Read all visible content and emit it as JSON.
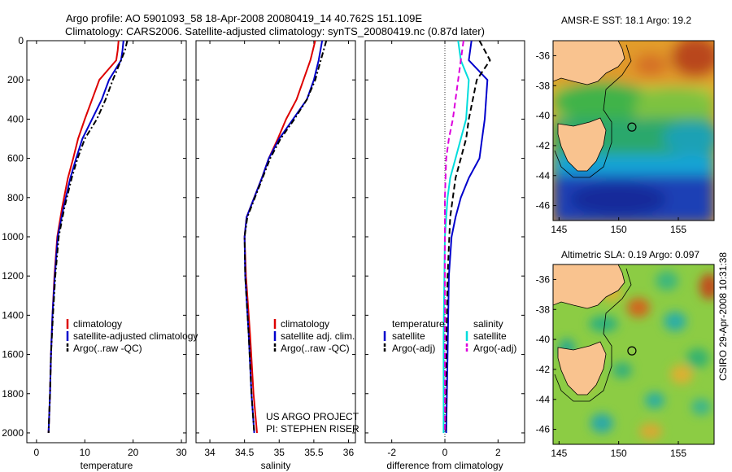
{
  "title": {
    "line1": "Argo profile: AO 5901093_58 18-Apr-2008 20080419_14 40.762S 151.109E",
    "line2": "Climatology: CARS2006. Satellite-adjusted climatology: synTS_20080419.nc (0.87d later)"
  },
  "stamp": "CSIRO 29-Apr-2008 10:31:38",
  "credit": {
    "line1": "US ARGO PROJECT",
    "line2": "PI: STEPHEN RISER"
  },
  "colors": {
    "climatology": "#dd0000",
    "satellite": "#0000cc",
    "argo": "#000000",
    "temp_diff_satellite": "#0000cc",
    "temp_diff_argo": "#000000",
    "sal_diff_satellite": "#00dddd",
    "sal_diff_argo": "#dd00dd",
    "land": "#f9c38f"
  },
  "chart_data": [
    {
      "type": "line",
      "xlabel": "temperature",
      "ylabel": "",
      "xlim": [
        -2,
        31
      ],
      "ylim": [
        2050,
        0
      ],
      "xticks": [
        0,
        10,
        20,
        30
      ],
      "yticks": [
        0,
        200,
        400,
        600,
        800,
        1000,
        1200,
        1400,
        1600,
        1800,
        2000
      ],
      "legend": {
        "position": "lower-right",
        "entries": [
          "climatology",
          "satellite-adjusted climatology",
          "Argo(..raw -QC)"
        ]
      },
      "series": [
        {
          "name": "climatology",
          "color_key": "climatology",
          "style": "solid",
          "x": [
            17.0,
            16.8,
            16.5,
            13.0,
            11.5,
            10.0,
            8.6,
            7.6,
            6.5,
            5.3,
            4.3,
            3.7,
            3.3,
            3.0,
            2.8,
            2.5
          ],
          "y": [
            0,
            50,
            100,
            200,
            300,
            400,
            500,
            600,
            700,
            850,
            1000,
            1200,
            1400,
            1600,
            1800,
            2000
          ]
        },
        {
          "name": "satellite-adjusted climatology",
          "color_key": "satellite",
          "style": "solid",
          "x": [
            18.0,
            17.8,
            17.5,
            15.0,
            13.5,
            11.5,
            9.5,
            8.2,
            7.0,
            5.6,
            4.4,
            3.8,
            3.3,
            3.0,
            2.8,
            2.5
          ],
          "y": [
            0,
            50,
            100,
            200,
            300,
            400,
            500,
            600,
            700,
            850,
            1000,
            1200,
            1400,
            1600,
            1800,
            2000
          ]
        },
        {
          "name": "Argo(..raw -QC)",
          "color_key": "argo",
          "style": "dashdot",
          "x": [
            18.8,
            18.3,
            17.5,
            15.8,
            14.3,
            12.5,
            10.0,
            8.5,
            7.3,
            5.8,
            4.6,
            3.9,
            3.4,
            3.0,
            2.8,
            2.5
          ],
          "y": [
            0,
            50,
            100,
            200,
            300,
            400,
            500,
            600,
            700,
            850,
            1000,
            1200,
            1400,
            1600,
            1800,
            2000
          ]
        }
      ]
    },
    {
      "type": "line",
      "xlabel": "salinity",
      "ylabel": "",
      "xlim": [
        33.8,
        36.1
      ],
      "ylim": [
        2050,
        0
      ],
      "xticks": [
        34,
        34.5,
        35,
        35.5,
        36
      ],
      "legend": {
        "position": "lower-right",
        "entries": [
          "climatology",
          "satellite adj. clim.",
          "Argo(..raw -QC)"
        ]
      },
      "series": [
        {
          "name": "climatology",
          "color_key": "climatology",
          "style": "solid",
          "x": [
            35.52,
            35.45,
            35.35,
            35.25,
            35.1,
            34.98,
            34.85,
            34.75,
            34.64,
            34.53,
            34.5,
            34.52,
            34.58,
            34.63,
            34.68
          ],
          "y": [
            0,
            100,
            200,
            300,
            400,
            500,
            600,
            700,
            800,
            900,
            1000,
            1200,
            1500,
            1800,
            2000
          ]
        },
        {
          "name": "satellite adj. clim.",
          "color_key": "satellite",
          "style": "solid",
          "x": [
            35.62,
            35.57,
            35.5,
            35.4,
            35.2,
            35.0,
            34.85,
            34.75,
            34.64,
            34.53,
            34.5,
            34.51,
            34.56,
            34.6,
            34.64
          ],
          "y": [
            0,
            100,
            200,
            300,
            400,
            500,
            600,
            700,
            800,
            900,
            1000,
            1200,
            1500,
            1800,
            2000
          ]
        },
        {
          "name": "Argo(..raw -QC)",
          "color_key": "argo",
          "style": "dashdot",
          "x": [
            35.68,
            35.6,
            35.52,
            35.4,
            35.22,
            35.02,
            34.87,
            34.76,
            34.65,
            34.54,
            34.5,
            34.51,
            34.56,
            34.6,
            34.64
          ],
          "y": [
            0,
            100,
            200,
            300,
            400,
            500,
            600,
            700,
            800,
            900,
            1000,
            1200,
            1500,
            1800,
            2000
          ]
        }
      ]
    },
    {
      "type": "line",
      "xlabel": "difference from climatology",
      "ylabel": "",
      "xlim": [
        -3,
        3
      ],
      "ylim": [
        2050,
        0
      ],
      "xticks": [
        -2,
        0,
        2
      ],
      "legend": {
        "position": "lower-center",
        "entries": [
          "temperature",
          "satellite",
          "Argo(-adj)",
          "salinity",
          "satellite",
          "Argo(-adj)"
        ]
      },
      "series": [
        {
          "name": "temperature satellite",
          "color_key": "temp_diff_satellite",
          "style": "solid",
          "x": [
            1.0,
            0.9,
            1.6,
            1.5,
            1.4,
            1.3,
            0.9,
            0.6,
            0.4,
            0.25,
            0.15,
            0.1,
            0.05
          ],
          "y": [
            0,
            100,
            200,
            400,
            500,
            600,
            700,
            800,
            900,
            1000,
            1200,
            1600,
            2000
          ]
        },
        {
          "name": "temperature Argo(-adj)",
          "color_key": "temp_diff_argo",
          "style": "dashed",
          "x": [
            1.3,
            1.7,
            1.2,
            0.9,
            0.8,
            0.6,
            0.4,
            0.3,
            0.2,
            0.1,
            0.05,
            0.02
          ],
          "y": [
            0,
            100,
            200,
            400,
            500,
            600,
            700,
            800,
            900,
            1200,
            1600,
            2000
          ]
        },
        {
          "name": "salinity satellite",
          "color_key": "sal_diff_satellite",
          "style": "solid",
          "x": [
            0.5,
            0.6,
            0.9,
            0.8,
            0.6,
            0.4,
            0.2,
            0.1,
            0.0,
            -0.05,
            -0.05
          ],
          "y": [
            0,
            100,
            200,
            400,
            500,
            600,
            700,
            800,
            1000,
            1500,
            2000
          ]
        },
        {
          "name": "salinity Argo(-adj)",
          "color_key": "sal_diff_argo",
          "style": "dashed",
          "x": [
            0.7,
            0.5,
            0.3,
            0.15,
            0.05,
            0.0,
            0.0,
            0.0
          ],
          "y": [
            0,
            200,
            400,
            500,
            600,
            800,
            1200,
            2000
          ]
        }
      ]
    },
    {
      "type": "heatmap",
      "title": "AMSR-E SST: 18.1 Argo: 19.2",
      "xlim": [
        144.5,
        158
      ],
      "ylim": [
        -47,
        -35
      ],
      "xticks": [
        145,
        150,
        155
      ],
      "yticks": [
        -36,
        -38,
        -40,
        -42,
        -44,
        -46
      ],
      "float_position": [
        151.109,
        -40.762
      ]
    },
    {
      "type": "heatmap",
      "title": "Altimetric SLA: 0.19 Argo: 0.097",
      "xlim": [
        144.5,
        158
      ],
      "ylim": [
        -47,
        -35
      ],
      "xticks": [
        145,
        150,
        155
      ],
      "yticks": [
        -36,
        -38,
        -40,
        -42,
        -44,
        -46
      ],
      "float_position": [
        151.109,
        -40.762
      ]
    }
  ]
}
